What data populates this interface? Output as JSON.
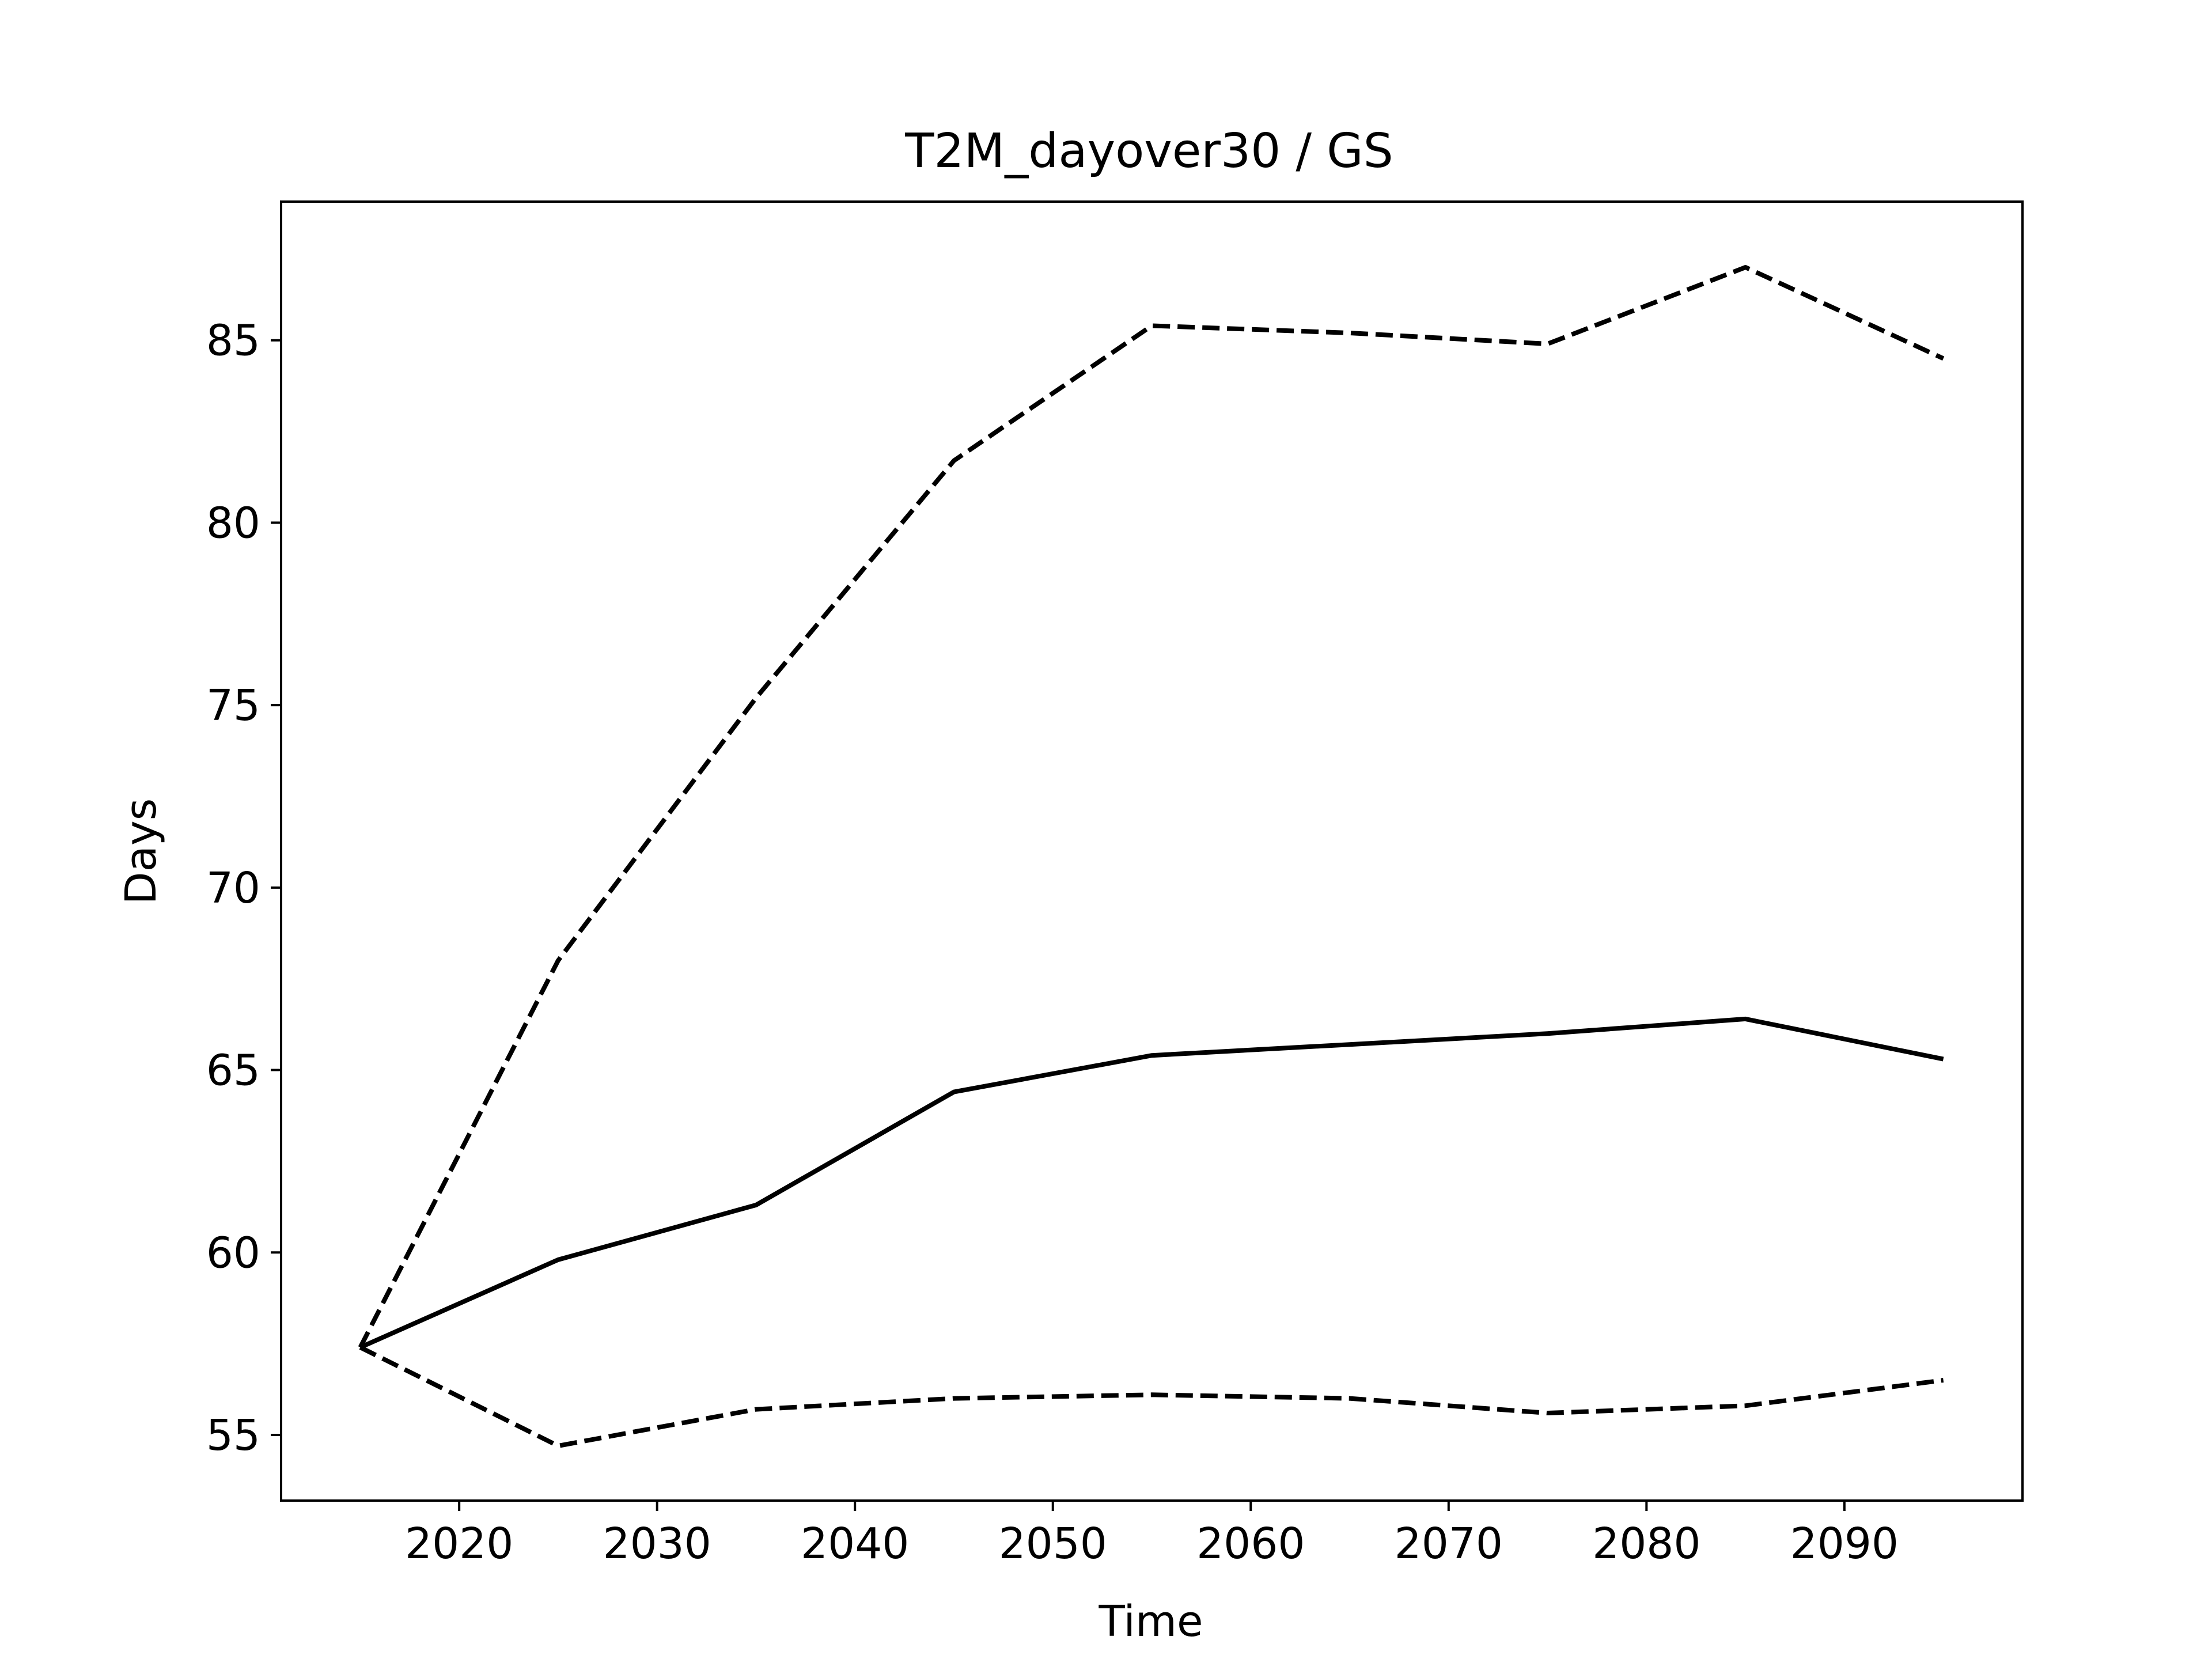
{
  "chart_data": {
    "type": "line",
    "title": "T2M_dayover30 / GS",
    "xlabel": "Time",
    "ylabel": "Days",
    "xlim": [
      2011,
      2099
    ],
    "ylim": [
      53.2,
      88.8
    ],
    "grid": false,
    "xticks": [
      2020,
      2030,
      2040,
      2050,
      2060,
      2070,
      2080,
      2090
    ],
    "yticks": [
      55,
      60,
      65,
      70,
      75,
      80,
      85
    ],
    "x": [
      2015,
      2025,
      2035,
      2045,
      2055,
      2065,
      2075,
      2085,
      2095
    ],
    "series": [
      {
        "style": "dashed",
        "color": "#000000",
        "values": [
          57.4,
          68.0,
          75.2,
          81.7,
          85.4,
          85.2,
          84.9,
          87.0,
          84.5
        ]
      },
      {
        "style": "solid",
        "color": "#000000",
        "values": [
          57.4,
          59.8,
          61.3,
          64.4,
          65.4,
          65.7,
          66.0,
          66.4,
          65.3
        ]
      },
      {
        "style": "dashed",
        "color": "#000000",
        "values": [
          57.4,
          54.7,
          55.7,
          56.0,
          56.1,
          56.0,
          55.6,
          55.8,
          56.5
        ]
      }
    ]
  }
}
